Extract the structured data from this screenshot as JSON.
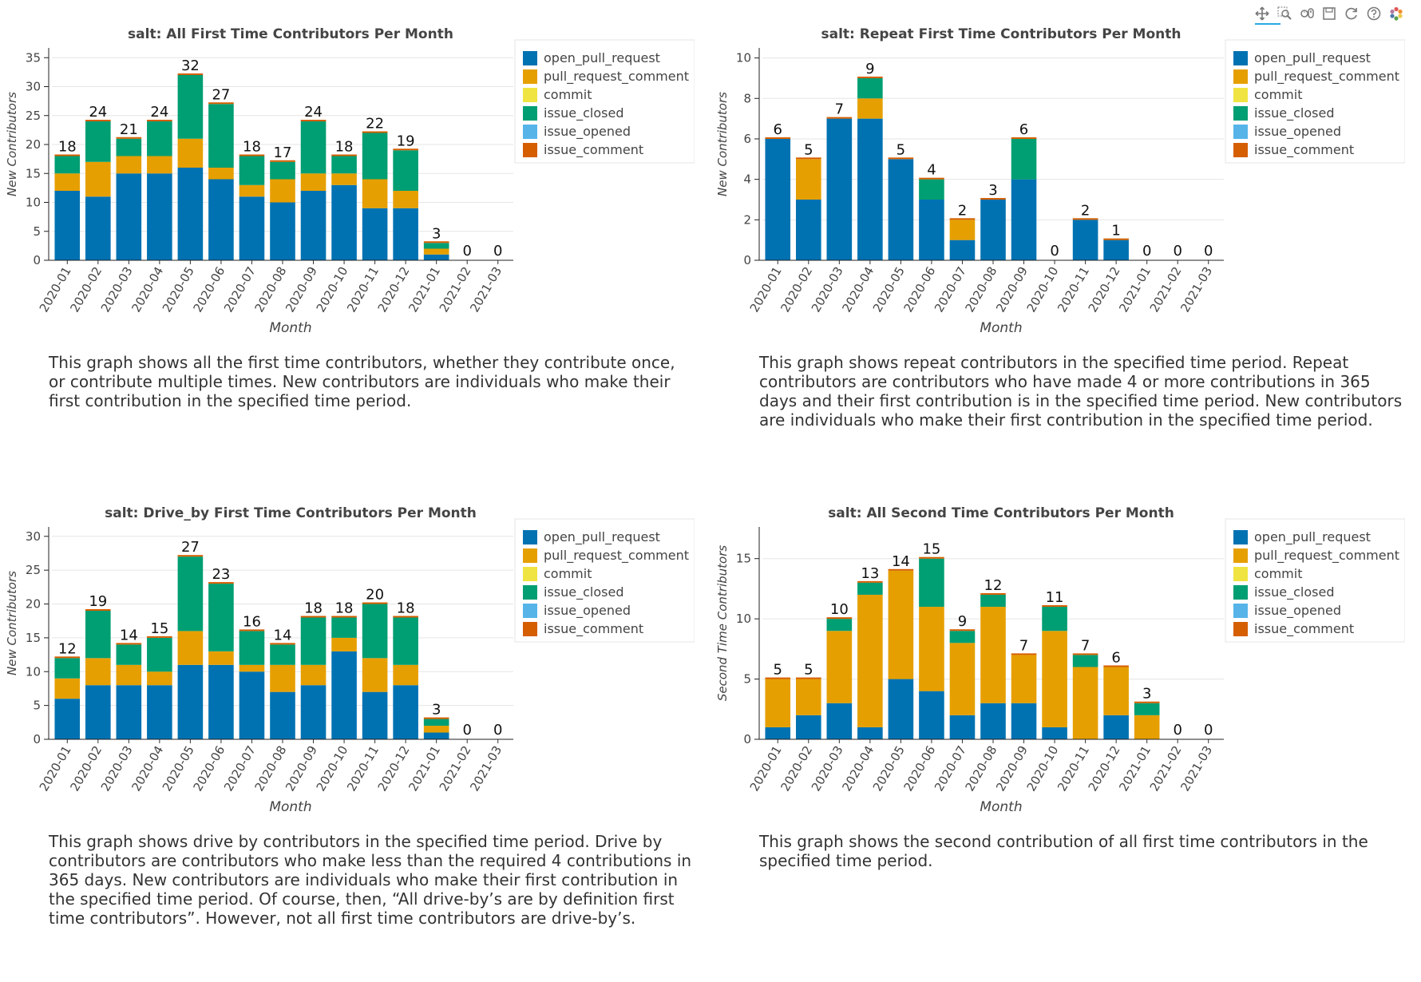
{
  "toolbar": {
    "icons": [
      "pan-icon",
      "box-zoom-icon",
      "wheel-zoom-icon",
      "save-icon",
      "reset-icon",
      "help-icon",
      "bokeh-logo-icon"
    ]
  },
  "colors": {
    "open_pull_request": "#0072B2",
    "pull_request_comment": "#E69F00",
    "commit": "#F0E442",
    "issue_closed": "#009E73",
    "issue_opened": "#56B4E9",
    "issue_comment": "#D55E00"
  },
  "chart_data": [
    {
      "type": "bar",
      "stacked": true,
      "title": "salt: All First Time Contributors Per Month",
      "xlabel": "Month",
      "ylabel": "New Contributors",
      "ylim": [
        0,
        36
      ],
      "yticks": [
        0,
        5,
        10,
        15,
        20,
        25,
        30,
        35
      ],
      "grid": true,
      "legend_position": "top-right",
      "categories": [
        "2020-01",
        "2020-02",
        "2020-03",
        "2020-04",
        "2020-05",
        "2020-06",
        "2020-07",
        "2020-08",
        "2020-09",
        "2020-10",
        "2020-11",
        "2020-12",
        "2021-01",
        "2021-02",
        "2021-03"
      ],
      "totals": [
        18,
        24,
        21,
        24,
        32,
        27,
        18,
        17,
        24,
        18,
        22,
        19,
        3,
        0,
        0
      ],
      "series": [
        {
          "name": "open_pull_request",
          "values": [
            12,
            11,
            15,
            15,
            16,
            14,
            11,
            10,
            12,
            13,
            9,
            9,
            1,
            0,
            0
          ]
        },
        {
          "name": "pull_request_comment",
          "values": [
            3,
            6,
            3,
            3,
            5,
            2,
            2,
            4,
            3,
            2,
            5,
            3,
            1,
            0,
            0
          ]
        },
        {
          "name": "commit",
          "values": [
            0,
            0,
            0,
            0,
            0,
            0,
            0,
            0,
            0,
            0,
            0,
            0,
            0,
            0,
            0
          ]
        },
        {
          "name": "issue_closed",
          "values": [
            3,
            7,
            3,
            6,
            11,
            11,
            5,
            3,
            9,
            3,
            8,
            7,
            1,
            0,
            0
          ]
        },
        {
          "name": "issue_opened",
          "values": [
            0,
            0,
            0,
            0,
            0,
            0,
            0,
            0,
            0,
            0,
            0,
            0,
            0,
            0,
            0
          ]
        },
        {
          "name": "issue_comment",
          "values": [
            0,
            0,
            0,
            0,
            0,
            0,
            0,
            0,
            0,
            0,
            0,
            0,
            0,
            0,
            0
          ]
        }
      ],
      "description": "This graph shows all the first time contributors, whether they contribute once, or contribute multiple times. New contributors are individuals who make their first contribution in the specified time period."
    },
    {
      "type": "bar",
      "stacked": true,
      "title": "salt: Repeat First Time Contributors Per Month",
      "xlabel": "Month",
      "ylabel": "New Contributors",
      "ylim": [
        0,
        10.3
      ],
      "yticks": [
        0,
        2,
        4,
        6,
        8,
        10
      ],
      "grid": true,
      "legend_position": "top-right",
      "categories": [
        "2020-01",
        "2020-02",
        "2020-03",
        "2020-04",
        "2020-05",
        "2020-06",
        "2020-07",
        "2020-08",
        "2020-09",
        "2020-10",
        "2020-11",
        "2020-12",
        "2021-01",
        "2021-02",
        "2021-03"
      ],
      "totals": [
        6,
        5,
        7,
        9,
        5,
        4,
        2,
        3,
        6,
        0,
        2,
        1,
        0,
        0,
        0
      ],
      "series": [
        {
          "name": "open_pull_request",
          "values": [
            6,
            3,
            7,
            7,
            5,
            3,
            1,
            3,
            4,
            0,
            2,
            1,
            0,
            0,
            0
          ]
        },
        {
          "name": "pull_request_comment",
          "values": [
            0,
            2,
            0,
            1,
            0,
            0,
            1,
            0,
            0,
            0,
            0,
            0,
            0,
            0,
            0
          ]
        },
        {
          "name": "commit",
          "values": [
            0,
            0,
            0,
            0,
            0,
            0,
            0,
            0,
            0,
            0,
            0,
            0,
            0,
            0,
            0
          ]
        },
        {
          "name": "issue_closed",
          "values": [
            0,
            0,
            0,
            1,
            0,
            1,
            0,
            0,
            2,
            0,
            0,
            0,
            0,
            0,
            0
          ]
        },
        {
          "name": "issue_opened",
          "values": [
            0,
            0,
            0,
            0,
            0,
            0,
            0,
            0,
            0,
            0,
            0,
            0,
            0,
            0,
            0
          ]
        },
        {
          "name": "issue_comment",
          "values": [
            0,
            0,
            0,
            0,
            0,
            0,
            0,
            0,
            0,
            0,
            0,
            0,
            0,
            0,
            0
          ]
        }
      ],
      "description": "This graph shows repeat contributors in the specified time period. Repeat contributors are contributors who have made 4 or more contributions in 365 days and their first contribution is in the specified time period. New contributors are individuals who make their first contribution in the specified time period."
    },
    {
      "type": "bar",
      "stacked": true,
      "title": "salt: Drive_by First Time Contributors Per Month",
      "xlabel": "Month",
      "ylabel": "New Contributors",
      "ylim": [
        0,
        30.8
      ],
      "yticks": [
        0,
        5,
        10,
        15,
        20,
        25,
        30
      ],
      "grid": true,
      "legend_position": "top-right",
      "categories": [
        "2020-01",
        "2020-02",
        "2020-03",
        "2020-04",
        "2020-05",
        "2020-06",
        "2020-07",
        "2020-08",
        "2020-09",
        "2020-10",
        "2020-11",
        "2020-12",
        "2021-01",
        "2021-02",
        "2021-03"
      ],
      "totals": [
        12,
        19,
        14,
        15,
        27,
        23,
        16,
        14,
        18,
        18,
        20,
        18,
        3,
        0,
        0
      ],
      "series": [
        {
          "name": "open_pull_request",
          "values": [
            6,
            8,
            8,
            8,
            11,
            11,
            10,
            7,
            8,
            13,
            7,
            8,
            1,
            0,
            0
          ]
        },
        {
          "name": "pull_request_comment",
          "values": [
            3,
            4,
            3,
            2,
            5,
            2,
            1,
            4,
            3,
            2,
            5,
            3,
            1,
            0,
            0
          ]
        },
        {
          "name": "commit",
          "values": [
            0,
            0,
            0,
            0,
            0,
            0,
            0,
            0,
            0,
            0,
            0,
            0,
            0,
            0,
            0
          ]
        },
        {
          "name": "issue_closed",
          "values": [
            3,
            7,
            3,
            5,
            11,
            10,
            5,
            3,
            7,
            3,
            8,
            7,
            1,
            0,
            0
          ]
        },
        {
          "name": "issue_opened",
          "values": [
            0,
            0,
            0,
            0,
            0,
            0,
            0,
            0,
            0,
            0,
            0,
            0,
            0,
            0,
            0
          ]
        },
        {
          "name": "issue_comment",
          "values": [
            0,
            0,
            0,
            0,
            0,
            0,
            0,
            0,
            0,
            0,
            0,
            0,
            0,
            0,
            0
          ]
        }
      ],
      "description": "This graph shows drive by contributors in the specified time period. Drive by contributors are contributors who make less than the required 4 contributions in 365 days. New contributors are individuals who make their first contribution in the specified time period. Of course, then, “All drive-by’s are by definition first time contributors”. However, not all first time contributors are drive-by’s."
    },
    {
      "type": "bar",
      "stacked": true,
      "title": "salt: All Second Time Contributors Per Month",
      "xlabel": "Month",
      "ylabel": "Second Time Contributors",
      "ylim": [
        0,
        17.3
      ],
      "yticks": [
        0,
        5,
        10,
        15
      ],
      "grid": true,
      "legend_position": "top-right",
      "categories": [
        "2020-01",
        "2020-02",
        "2020-03",
        "2020-04",
        "2020-05",
        "2020-06",
        "2020-07",
        "2020-08",
        "2020-09",
        "2020-10",
        "2020-11",
        "2020-12",
        "2021-01",
        "2021-02",
        "2021-03"
      ],
      "totals": [
        5,
        5,
        10,
        13,
        14,
        15,
        9,
        12,
        7,
        11,
        7,
        6,
        3,
        0,
        0
      ],
      "series": [
        {
          "name": "open_pull_request",
          "values": [
            1,
            2,
            3,
            1,
            5,
            4,
            2,
            3,
            3,
            1,
            0,
            2,
            0,
            0,
            0
          ]
        },
        {
          "name": "pull_request_comment",
          "values": [
            4,
            3,
            6,
            11,
            9,
            7,
            6,
            8,
            4,
            8,
            6,
            4,
            2,
            0,
            0
          ]
        },
        {
          "name": "commit",
          "values": [
            0,
            0,
            0,
            0,
            0,
            0,
            0,
            0,
            0,
            0,
            0,
            0,
            0,
            0,
            0
          ]
        },
        {
          "name": "issue_closed",
          "values": [
            0,
            0,
            1,
            1,
            0,
            4,
            1,
            1,
            0,
            2,
            1,
            0,
            1,
            0,
            0
          ]
        },
        {
          "name": "issue_opened",
          "values": [
            0,
            0,
            0,
            0,
            0,
            0,
            0,
            0,
            0,
            0,
            0,
            0,
            0,
            0,
            0
          ]
        },
        {
          "name": "issue_comment",
          "values": [
            0,
            0,
            0,
            0,
            0,
            0,
            0,
            0,
            0,
            0,
            0,
            0,
            0,
            0,
            0
          ]
        }
      ],
      "description": "This graph shows the second contribution of all first time contributors in the specified time period."
    }
  ]
}
